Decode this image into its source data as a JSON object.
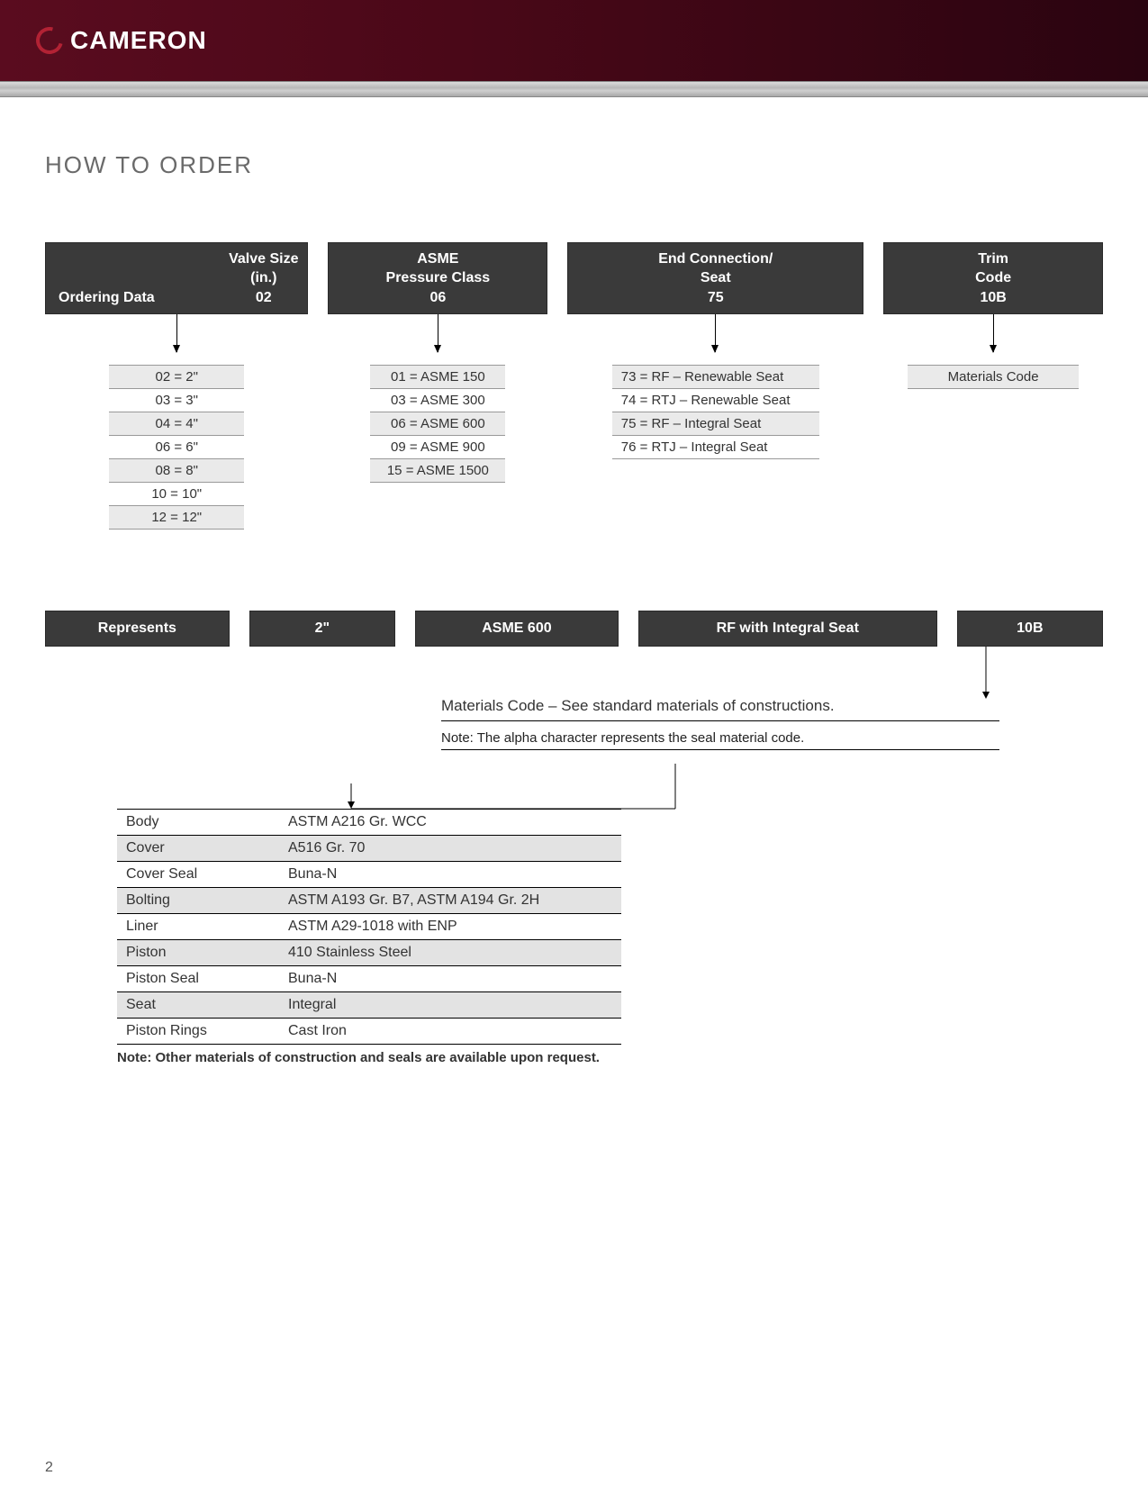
{
  "brand": {
    "name": "CAMERON"
  },
  "sectionTitle": "HOW TO ORDER",
  "pageNumber": "2",
  "columns": {
    "ordering_label": "Ordering Data",
    "c0": {
      "l1": "Valve Size",
      "l2": "(in.)",
      "code": "02",
      "opts": [
        "02 = 2\"",
        "03 = 3\"",
        "04 = 4\"",
        "06 = 6\"",
        "08 = 8\"",
        "10 = 10\"",
        "12 = 12\""
      ]
    },
    "c1": {
      "l1": "ASME",
      "l2": "Pressure Class",
      "code": "06",
      "opts": [
        "01 = ASME 150",
        "03 = ASME 300",
        "06 = ASME 600",
        "09 = ASME 900",
        "15 = ASME 1500"
      ]
    },
    "c2": {
      "l1": "End Connection/",
      "l2": "Seat",
      "code": "75",
      "opts": [
        "73 =  RF   – Renewable Seat",
        "74 =  RTJ  – Renewable Seat",
        "75 =  RF   – Integral Seat",
        "76 =  RTJ  – Integral Seat"
      ]
    },
    "c3": {
      "l1": "Trim",
      "l2": "Code",
      "code": "10B",
      "opts": [
        "Materials Code"
      ]
    }
  },
  "represents": {
    "label": "Represents",
    "v0": "2\"",
    "v1": "ASME 600",
    "v2": "RF with Integral Seat",
    "v3": "10B"
  },
  "materialsNote": {
    "line": "Materials Code – See standard materials of constructions.",
    "note": "Note: The alpha character represents the seal material code."
  },
  "materialsTable": {
    "rows": [
      {
        "l": "Body",
        "r": "ASTM A216 Gr. WCC"
      },
      {
        "l": "Cover",
        "r": "A516 Gr. 70"
      },
      {
        "l": "Cover Seal",
        "r": "Buna-N"
      },
      {
        "l": "Bolting",
        "r": "ASTM A193 Gr. B7, ASTM A194 Gr. 2H"
      },
      {
        "l": "Liner",
        "r": "ASTM A29-1018 with ENP"
      },
      {
        "l": "Piston",
        "r": "410 Stainless Steel"
      },
      {
        "l": "Piston Seal",
        "r": "Buna-N"
      },
      {
        "l": "Seat",
        "r": "Integral"
      },
      {
        "l": "Piston Rings",
        "r": "Cast Iron"
      }
    ],
    "footnote": "Note: Other materials of construction and seals are available upon request."
  },
  "colors": {
    "headerBg": "#3a3a3a",
    "headerText": "#ffffff",
    "altRow": "#eaeaea",
    "brandGradientStart": "#5a0c1f",
    "brandGradientEnd": "#2a0410"
  }
}
